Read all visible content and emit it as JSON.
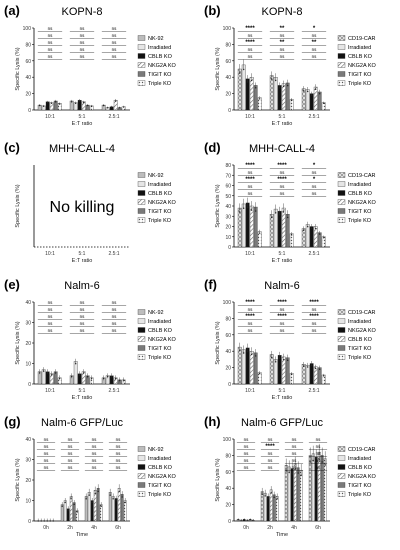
{
  "chart_data": [
    {
      "panel_label": "(a)",
      "title": "KOPN-8",
      "type": "bar",
      "ylabel": "Specific Lysis (%)",
      "xlabel": "E:T ratio",
      "ylim": [
        0,
        100
      ],
      "yticks": [
        0,
        20,
        40,
        60,
        80,
        100
      ],
      "categories": [
        "10:1",
        "5:1",
        "2.5:1"
      ],
      "series": [
        {
          "name": "NK-92",
          "values": [
            6,
            11,
            6
          ]
        },
        {
          "name": "Irradiated",
          "values": [
            5,
            9,
            3
          ]
        },
        {
          "name": "CBLB KO",
          "values": [
            10,
            12,
            4
          ]
        },
        {
          "name": "NKG2A KO",
          "values": [
            9,
            10,
            12
          ]
        },
        {
          "name": "TIGIT KO",
          "values": [
            11,
            6,
            3
          ]
        },
        {
          "name": "Triple KO",
          "values": [
            8,
            5,
            4
          ]
        }
      ],
      "annotations": [
        {
          "category": 0,
          "rows": [
            "ns",
            "ns",
            "ns",
            "ns",
            "ns"
          ]
        },
        {
          "category": 1,
          "rows": [
            "ns",
            "ns",
            "ns",
            "ns",
            "ns"
          ]
        },
        {
          "category": 2,
          "rows": [
            "ns",
            "ns",
            "ns",
            "ns",
            "ns"
          ]
        }
      ]
    },
    {
      "panel_label": "(b)",
      "title": "KOPN-8",
      "type": "bar",
      "ylabel": "Specific Lysis (%)",
      "xlabel": "E:T ratio",
      "ylim": [
        0,
        100
      ],
      "yticks": [
        0,
        20,
        40,
        60,
        80,
        100
      ],
      "categories": [
        "10:1",
        "5:1",
        "2.5:1"
      ],
      "series": [
        {
          "name": "CD19-CAR",
          "values": [
            50,
            42,
            26
          ]
        },
        {
          "name": "Irradiated",
          "values": [
            55,
            40,
            25
          ]
        },
        {
          "name": "CBLB KO",
          "values": [
            38,
            30,
            20
          ]
        },
        {
          "name": "NKG2A KO",
          "values": [
            40,
            32,
            28
          ]
        },
        {
          "name": "TIGIT KO",
          "values": [
            30,
            33,
            22
          ]
        },
        {
          "name": "Triple KO",
          "values": [
            15,
            13,
            9
          ]
        }
      ],
      "annotations": [
        {
          "category": 0,
          "rows": [
            "****",
            "ns",
            "****",
            "ns",
            "ns"
          ]
        },
        {
          "category": 1,
          "rows": [
            "**",
            "ns",
            "**",
            "ns",
            "ns"
          ]
        },
        {
          "category": 2,
          "rows": [
            "*",
            "ns",
            "**",
            "ns",
            "ns"
          ]
        }
      ]
    },
    {
      "panel_label": "(c)",
      "title": "MHH-CALL-4",
      "type": "bar",
      "ylabel": "Specific Lysis (%)",
      "xlabel": "E:T ratio",
      "ylim": [
        0,
        100
      ],
      "yticks": [],
      "categories": [
        "10:1",
        "5:1",
        "2.5:1"
      ],
      "series": [
        {
          "name": "NK-92",
          "values": [
            0,
            0,
            0
          ]
        },
        {
          "name": "Irradiated",
          "values": [
            0,
            0,
            0
          ]
        },
        {
          "name": "CBLB KO",
          "values": [
            0,
            0,
            0
          ]
        },
        {
          "name": "NKG2A KO",
          "values": [
            0,
            0,
            0
          ]
        },
        {
          "name": "TIGIT KO",
          "values": [
            0,
            0,
            0
          ]
        },
        {
          "name": "Triple KO",
          "values": [
            0,
            0,
            0
          ]
        }
      ],
      "annotations": [],
      "center_text": "No killing"
    },
    {
      "panel_label": "(d)",
      "title": "MHH-CALL-4",
      "type": "bar",
      "ylabel": "Specific Lysis (%)",
      "xlabel": "E:T ratio",
      "ylim": [
        0,
        80
      ],
      "yticks": [
        0,
        10,
        20,
        30,
        40,
        50,
        60,
        70,
        80
      ],
      "categories": [
        "10:1",
        "5:1",
        "2.5:1"
      ],
      "series": [
        {
          "name": "CD19-CAR",
          "values": [
            38,
            32,
            18
          ]
        },
        {
          "name": "Irradiated",
          "values": [
            42,
            37,
            22
          ]
        },
        {
          "name": "CBLB KO",
          "values": [
            43,
            35,
            20
          ]
        },
        {
          "name": "NKG2A KO",
          "values": [
            40,
            38,
            20
          ]
        },
        {
          "name": "TIGIT KO",
          "values": [
            39,
            32,
            14
          ]
        },
        {
          "name": "Triple KO",
          "values": [
            15,
            13,
            10
          ]
        }
      ],
      "annotations": [
        {
          "category": 0,
          "rows": [
            "****",
            "ns",
            "****",
            "ns",
            "ns"
          ]
        },
        {
          "category": 1,
          "rows": [
            "****",
            "ns",
            "****",
            "ns",
            "ns"
          ]
        },
        {
          "category": 2,
          "rows": [
            "*",
            "ns",
            "*",
            "ns",
            "ns"
          ]
        }
      ]
    },
    {
      "panel_label": "(e)",
      "title": "Nalm-6",
      "type": "bar",
      "ylabel": "Specific Lysis (%)",
      "xlabel": "E:T ratio",
      "ylim": [
        0,
        40
      ],
      "yticks": [
        0,
        10,
        20,
        30,
        40
      ],
      "categories": [
        "10:1",
        "5:1",
        "2.5:1"
      ],
      "series": [
        {
          "name": "NK-92",
          "values": [
            6,
            4,
            3
          ]
        },
        {
          "name": "Irradiated",
          "values": [
            7,
            11,
            4
          ]
        },
        {
          "name": "CBLB KO",
          "values": [
            6,
            5,
            4
          ]
        },
        {
          "name": "NKG2A KO",
          "values": [
            5,
            6,
            3
          ]
        },
        {
          "name": "TIGIT KO",
          "values": [
            6,
            4,
            2
          ]
        },
        {
          "name": "Triple KO",
          "values": [
            3,
            3,
            2
          ]
        }
      ],
      "annotations": [
        {
          "category": 0,
          "rows": [
            "ns",
            "ns",
            "ns",
            "ns",
            "ns"
          ]
        },
        {
          "category": 1,
          "rows": [
            "ns",
            "ns",
            "ns",
            "ns",
            "ns"
          ]
        },
        {
          "category": 2,
          "rows": [
            "ns",
            "ns",
            "ns",
            "ns",
            "ns"
          ]
        }
      ]
    },
    {
      "panel_label": "(f)",
      "title": "Nalm-6",
      "type": "bar",
      "ylabel": "Specific Lysis (%)",
      "xlabel": "E:T ratio",
      "ylim": [
        0,
        100
      ],
      "yticks": [
        0,
        20,
        40,
        60,
        80,
        100
      ],
      "categories": [
        "10:1",
        "5:1",
        "2.5:1"
      ],
      "series": [
        {
          "name": "CD19-CAR",
          "values": [
            45,
            36,
            24
          ]
        },
        {
          "name": "Irradiated",
          "values": [
            42,
            30,
            23
          ]
        },
        {
          "name": "NKG2A KO",
          "values": [
            44,
            35,
            25
          ]
        },
        {
          "name": "CBLB KO",
          "values": [
            40,
            33,
            21
          ]
        },
        {
          "name": "TIGIT KO",
          "values": [
            38,
            32,
            20
          ]
        },
        {
          "name": "Triple KO",
          "values": [
            14,
            13,
            11
          ]
        }
      ],
      "annotations": [
        {
          "category": 0,
          "rows": [
            "****",
            "ns",
            "****",
            "ns",
            "ns"
          ]
        },
        {
          "category": 1,
          "rows": [
            "****",
            "ns",
            "****",
            "ns",
            "ns"
          ]
        },
        {
          "category": 2,
          "rows": [
            "****",
            "ns",
            "****",
            "ns",
            "ns"
          ]
        }
      ]
    },
    {
      "panel_label": "(g)",
      "title": "Nalm-6 GFP/Luc",
      "type": "bar",
      "ylabel": "Specific Lysis (%)",
      "xlabel": "Time",
      "ylim": [
        0,
        40
      ],
      "yticks": [
        0,
        10,
        20,
        30,
        40
      ],
      "categories": [
        "0h",
        "2h",
        "4h",
        "6h"
      ],
      "series": [
        {
          "name": "NK-92",
          "values": [
            0,
            8,
            12,
            14
          ]
        },
        {
          "name": "Irradiated",
          "values": [
            0,
            10,
            14,
            12
          ]
        },
        {
          "name": "CBLB KO",
          "values": [
            0,
            6,
            10,
            11
          ]
        },
        {
          "name": "NKG2A KO",
          "values": [
            0,
            12,
            15,
            16
          ]
        },
        {
          "name": "TIGIT KO",
          "values": [
            0,
            9,
            16,
            13
          ]
        },
        {
          "name": "Triple KO",
          "values": [
            0,
            5,
            8,
            10
          ]
        }
      ],
      "annotations": [
        {
          "category": 0,
          "rows": [
            "ns",
            "ns",
            "ns",
            "ns",
            "ns"
          ]
        },
        {
          "category": 1,
          "rows": [
            "ns",
            "ns",
            "ns",
            "ns",
            "ns"
          ]
        },
        {
          "category": 2,
          "rows": [
            "ns",
            "ns",
            "ns",
            "ns",
            "ns"
          ]
        },
        {
          "category": 3,
          "rows": [
            "ns",
            "ns",
            "ns",
            "ns",
            "ns"
          ]
        }
      ]
    },
    {
      "panel_label": "(h)",
      "title": "Nalm-6 GFP/Luc",
      "type": "bar",
      "ylabel": "Specific Lysis (%)",
      "xlabel": "Time",
      "ylim": [
        0,
        100
      ],
      "yticks": [
        0,
        20,
        40,
        60,
        80,
        100
      ],
      "categories": [
        "0h",
        "2h",
        "4h",
        "6h"
      ],
      "series": [
        {
          "name": "CD19-CAR",
          "values": [
            2,
            36,
            68,
            80
          ]
        },
        {
          "name": "Irradiated",
          "values": [
            1,
            34,
            66,
            82
          ]
        },
        {
          "name": "CBLB KO",
          "values": [
            2,
            30,
            64,
            78
          ]
        },
        {
          "name": "NKG2A KO",
          "values": [
            1,
            38,
            70,
            84
          ]
        },
        {
          "name": "TIGIT KO",
          "values": [
            2,
            32,
            65,
            80
          ]
        },
        {
          "name": "Triple KO",
          "values": [
            1,
            30,
            62,
            76
          ]
        }
      ],
      "annotations": [
        {
          "category": 0,
          "rows": [
            "ns",
            "ns",
            "ns",
            "ns",
            "ns"
          ]
        },
        {
          "category": 1,
          "rows": [
            "ns",
            "****",
            "ns",
            "ns",
            "ns"
          ]
        },
        {
          "category": 2,
          "rows": [
            "ns",
            "ns",
            "ns",
            "ns",
            "ns"
          ]
        },
        {
          "category": 3,
          "rows": [
            "ns",
            "ns",
            "ns",
            "ns",
            "ns"
          ]
        }
      ]
    }
  ]
}
